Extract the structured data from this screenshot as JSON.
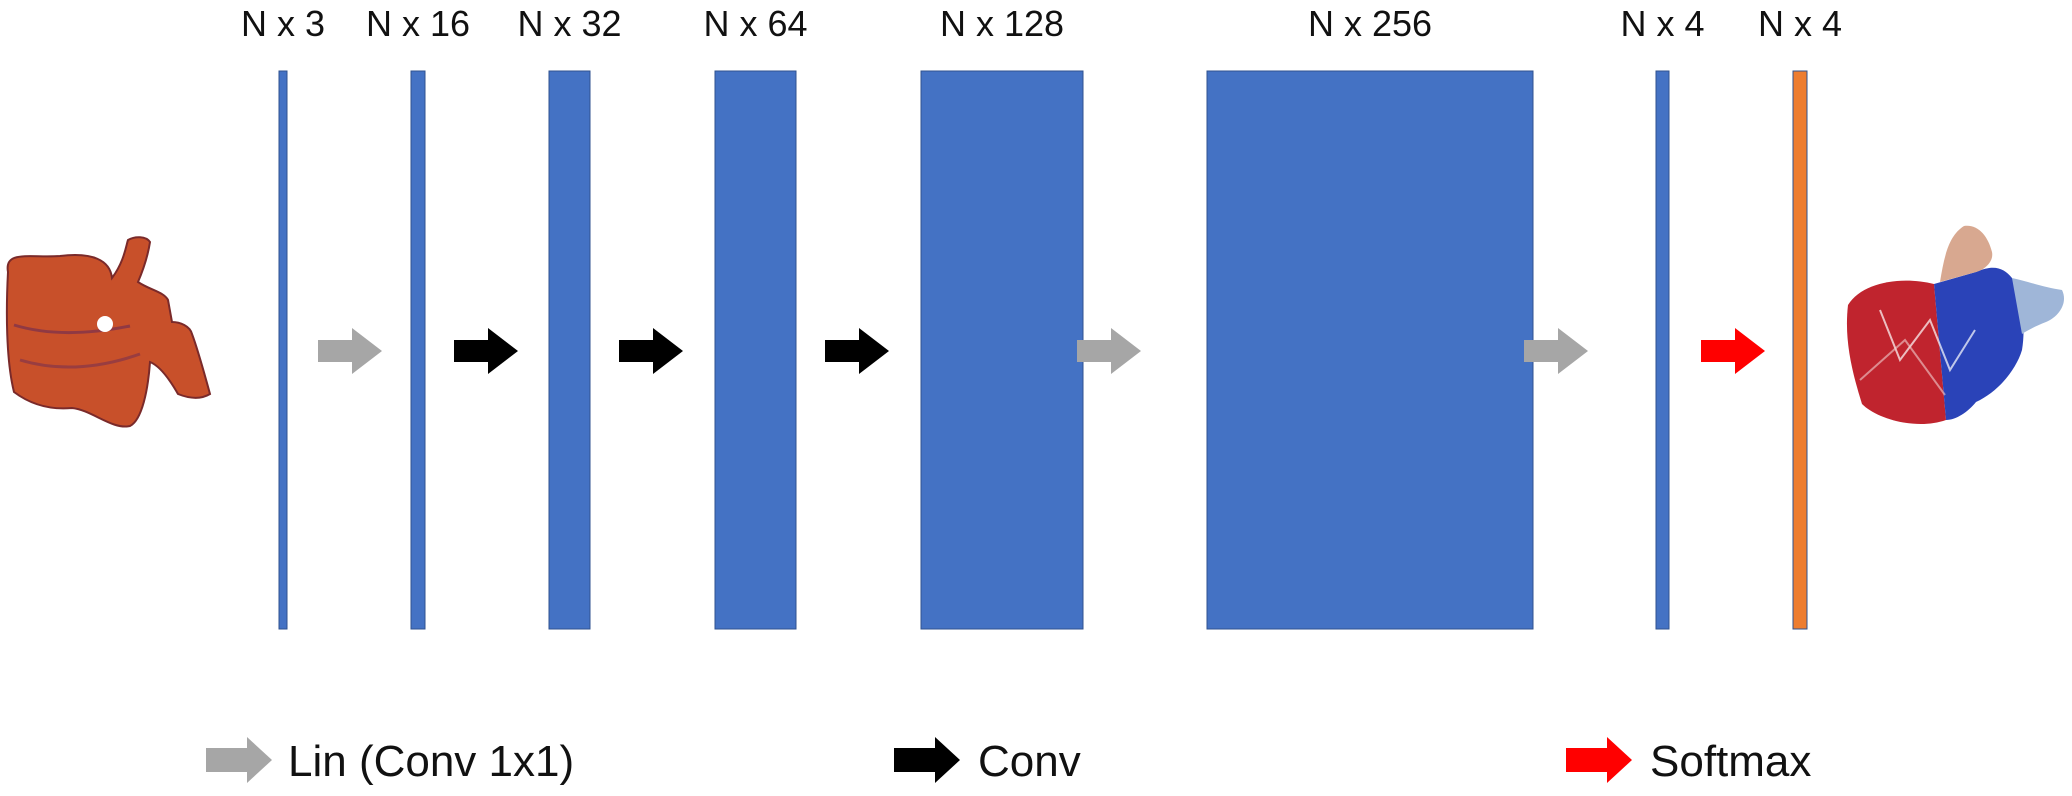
{
  "layers": [
    {
      "label": "N x 3",
      "color": "#4472c4"
    },
    {
      "label": "N x 16",
      "color": "#4472c4"
    },
    {
      "label": "N x 32",
      "color": "#4472c4"
    },
    {
      "label": "N x 64",
      "color": "#4472c4"
    },
    {
      "label": "N x 128",
      "color": "#4472c4"
    },
    {
      "label": "N x 256",
      "color": "#4472c4"
    },
    {
      "label": "N x 4",
      "color": "#4472c4"
    },
    {
      "label": "N x 4",
      "color": "#ed7d31"
    }
  ],
  "arrow_types": {
    "lin": {
      "color": "#a6a6a6",
      "label": "Lin (Conv 1x1)"
    },
    "conv": {
      "color": "#000000",
      "label": "Conv"
    },
    "softmax": {
      "color": "#ff0000",
      "label": "Softmax"
    }
  },
  "connections": [
    "lin",
    "conv",
    "conv",
    "conv",
    "lin",
    "lin",
    "softmax"
  ],
  "input_mesh": {
    "icon": "vertebra-mesh-icon",
    "color": "#c8502a"
  },
  "output_mesh": {
    "icon": "segmented-vertebra-icon",
    "colors": [
      "#c0242e",
      "#2a43b8",
      "#d8a890",
      "#9fb6d8"
    ]
  }
}
